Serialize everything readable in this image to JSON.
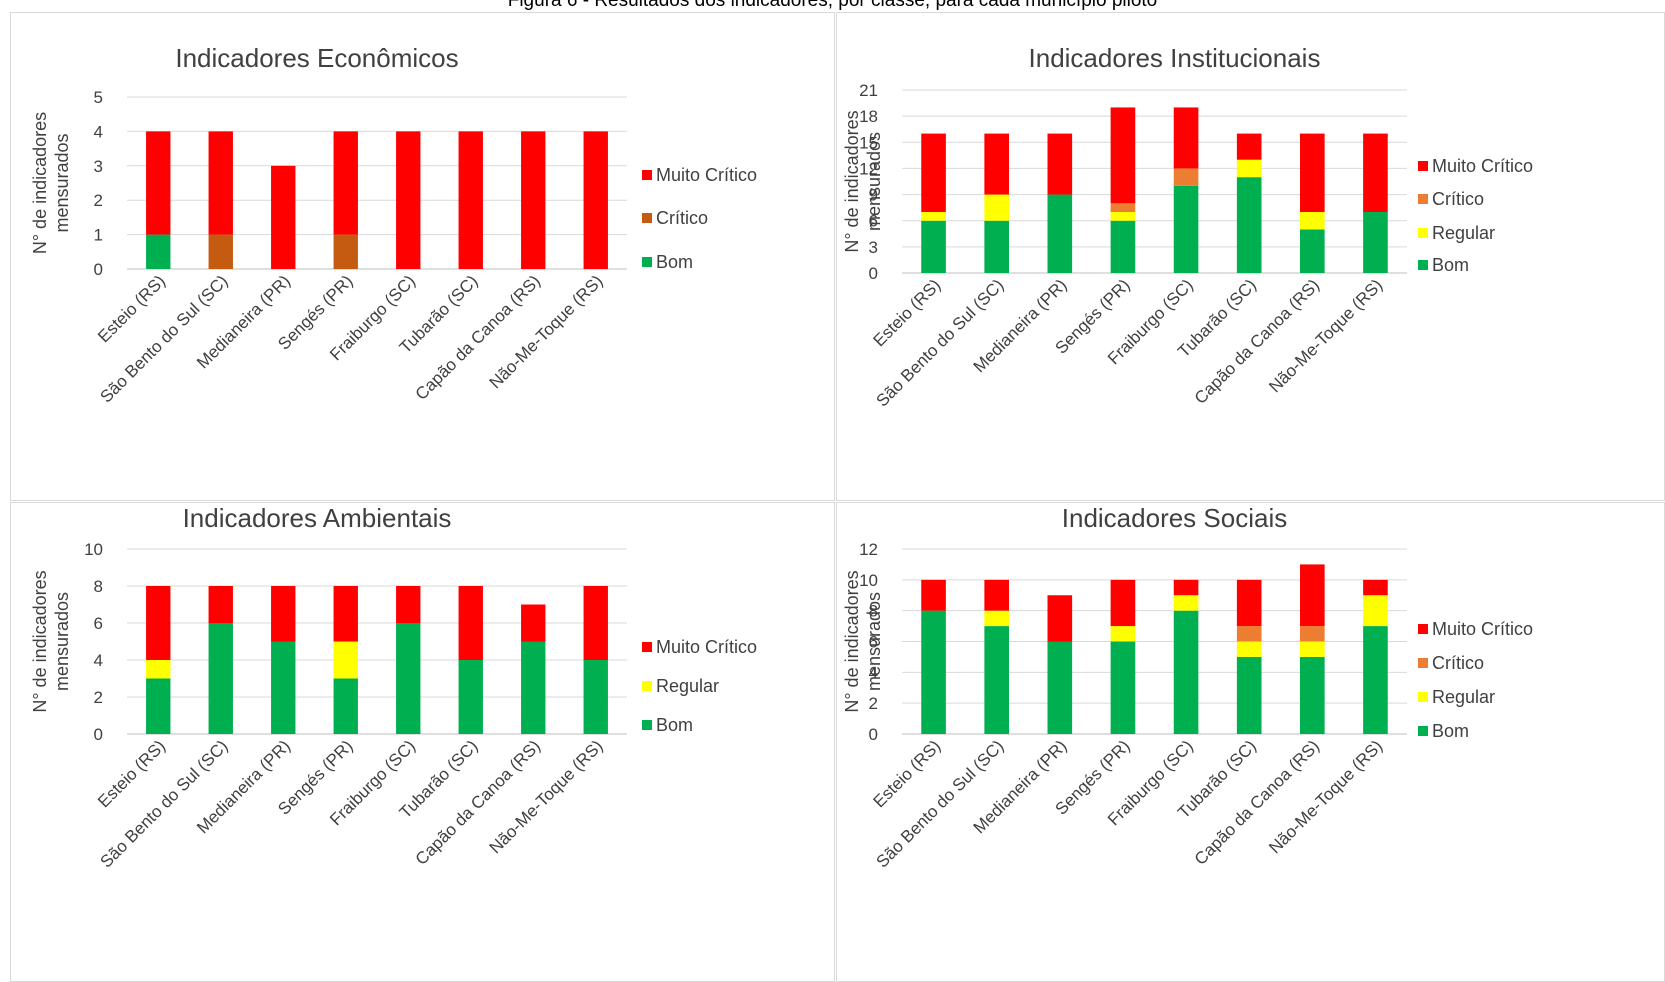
{
  "page_title": "Figura 6 - Resultados dos indicadores, por classe, para cada município piloto",
  "colors": {
    "Bom": "#00b050",
    "Regular": "#ffff00",
    "Crítico_dark": "#c55a11",
    "Crítico": "#ed7d31",
    "Muito Crítico": "#ff0000",
    "grid": "#d9d9d9",
    "text": "#404040"
  },
  "chart_data": [
    {
      "type": "bar",
      "stacked": true,
      "title": "Indicadores Econômicos",
      "ylabel": "N° de indicadores mensurados",
      "xlabel": "",
      "categories": [
        "Esteio (RS)",
        "São Bento do Sul (SC)",
        "Medianeira (PR)",
        "Sengés (PR)",
        "Fraiburgo (SC)",
        "Tubarão (SC)",
        "Capão da Canoa (RS)",
        "Não-Me-Toque (RS)"
      ],
      "ylim": [
        0,
        5
      ],
      "yticks": [
        0,
        1,
        2,
        3,
        4,
        5
      ],
      "grid": true,
      "legend_position": "right",
      "legend": [
        "Muito Crítico",
        "Crítico",
        "Bom"
      ],
      "series": [
        {
          "name": "Bom",
          "color": "#00b050",
          "values": [
            1,
            0,
            0,
            0,
            0,
            0,
            0,
            0
          ]
        },
        {
          "name": "Crítico",
          "color": "#c55a11",
          "values": [
            0,
            1,
            0,
            1,
            0,
            0,
            0,
            0
          ]
        },
        {
          "name": "Muito Crítico",
          "color": "#ff0000",
          "values": [
            3,
            3,
            3,
            3,
            4,
            4,
            4,
            4
          ]
        }
      ]
    },
    {
      "type": "bar",
      "stacked": true,
      "title": "Indicadores Institucionais",
      "ylabel": "N° de indicadores mensurados",
      "xlabel": "",
      "categories": [
        "Esteio (RS)",
        "São Bento do Sul (SC)",
        "Medianeira (PR)",
        "Sengés (PR)",
        "Fraiburgo (SC)",
        "Tubarão (SC)",
        "Capão da Canoa (RS)",
        "Não-Me-Toque (RS)"
      ],
      "ylim": [
        0,
        21
      ],
      "yticks": [
        0,
        3,
        6,
        9,
        12,
        15,
        18,
        21
      ],
      "grid": true,
      "legend_position": "right",
      "legend": [
        "Muito Crítico",
        "Crítico",
        "Regular",
        "Bom"
      ],
      "series": [
        {
          "name": "Bom",
          "color": "#00b050",
          "values": [
            6,
            6,
            9,
            6,
            10,
            11,
            5,
            7
          ]
        },
        {
          "name": "Regular",
          "color": "#ffff00",
          "values": [
            1,
            3,
            0,
            1,
            0,
            2,
            2,
            0
          ]
        },
        {
          "name": "Crítico",
          "color": "#ed7d31",
          "values": [
            0,
            0,
            0,
            1,
            2,
            0,
            0,
            0
          ]
        },
        {
          "name": "Muito Crítico",
          "color": "#ff0000",
          "values": [
            9,
            7,
            7,
            11,
            7,
            3,
            9,
            9
          ]
        }
      ]
    },
    {
      "type": "bar",
      "stacked": true,
      "title": "Indicadores Ambientais",
      "ylabel": "N° de indicadores mensurados",
      "xlabel": "",
      "categories": [
        "Esteio (RS)",
        "São Bento do Sul (SC)",
        "Medianeira (PR)",
        "Sengés (PR)",
        "Fraiburgo (SC)",
        "Tubarão (SC)",
        "Capão da Canoa (RS)",
        "Não-Me-Toque (RS)"
      ],
      "ylim": [
        0,
        10
      ],
      "yticks": [
        0,
        2,
        4,
        6,
        8,
        10
      ],
      "grid": true,
      "legend_position": "right",
      "legend": [
        "Muito Crítico",
        "Regular",
        "Bom"
      ],
      "series": [
        {
          "name": "Bom",
          "color": "#00b050",
          "values": [
            3,
            6,
            5,
            3,
            6,
            4,
            5,
            4
          ]
        },
        {
          "name": "Regular",
          "color": "#ffff00",
          "values": [
            1,
            0,
            0,
            2,
            0,
            0,
            0,
            0
          ]
        },
        {
          "name": "Muito Crítico",
          "color": "#ff0000",
          "values": [
            4,
            2,
            3,
            3,
            2,
            4,
            2,
            4
          ]
        }
      ]
    },
    {
      "type": "bar",
      "stacked": true,
      "title": "Indicadores Sociais",
      "ylabel": "N° de indicadores mensurados",
      "xlabel": "",
      "categories": [
        "Esteio (RS)",
        "São Bento do Sul (SC)",
        "Medianeira (PR)",
        "Sengés (PR)",
        "Fraiburgo (SC)",
        "Tubarão (SC)",
        "Capão da Canoa (RS)",
        "Não-Me-Toque (RS)"
      ],
      "ylim": [
        0,
        12
      ],
      "yticks": [
        0,
        2,
        4,
        6,
        8,
        10,
        12
      ],
      "grid": true,
      "legend_position": "right",
      "legend": [
        "Muito Crítico",
        "Crítico",
        "Regular",
        "Bom"
      ],
      "series": [
        {
          "name": "Bom",
          "color": "#00b050",
          "values": [
            8,
            7,
            6,
            6,
            8,
            5,
            5,
            7
          ]
        },
        {
          "name": "Regular",
          "color": "#ffff00",
          "values": [
            0,
            1,
            0,
            1,
            1,
            1,
            1,
            2
          ]
        },
        {
          "name": "Crítico",
          "color": "#ed7d31",
          "values": [
            0,
            0,
            0,
            0,
            0,
            1,
            1,
            0
          ]
        },
        {
          "name": "Muito Crítico",
          "color": "#ff0000",
          "values": [
            2,
            2,
            3,
            3,
            1,
            3,
            4,
            1
          ]
        }
      ]
    }
  ]
}
